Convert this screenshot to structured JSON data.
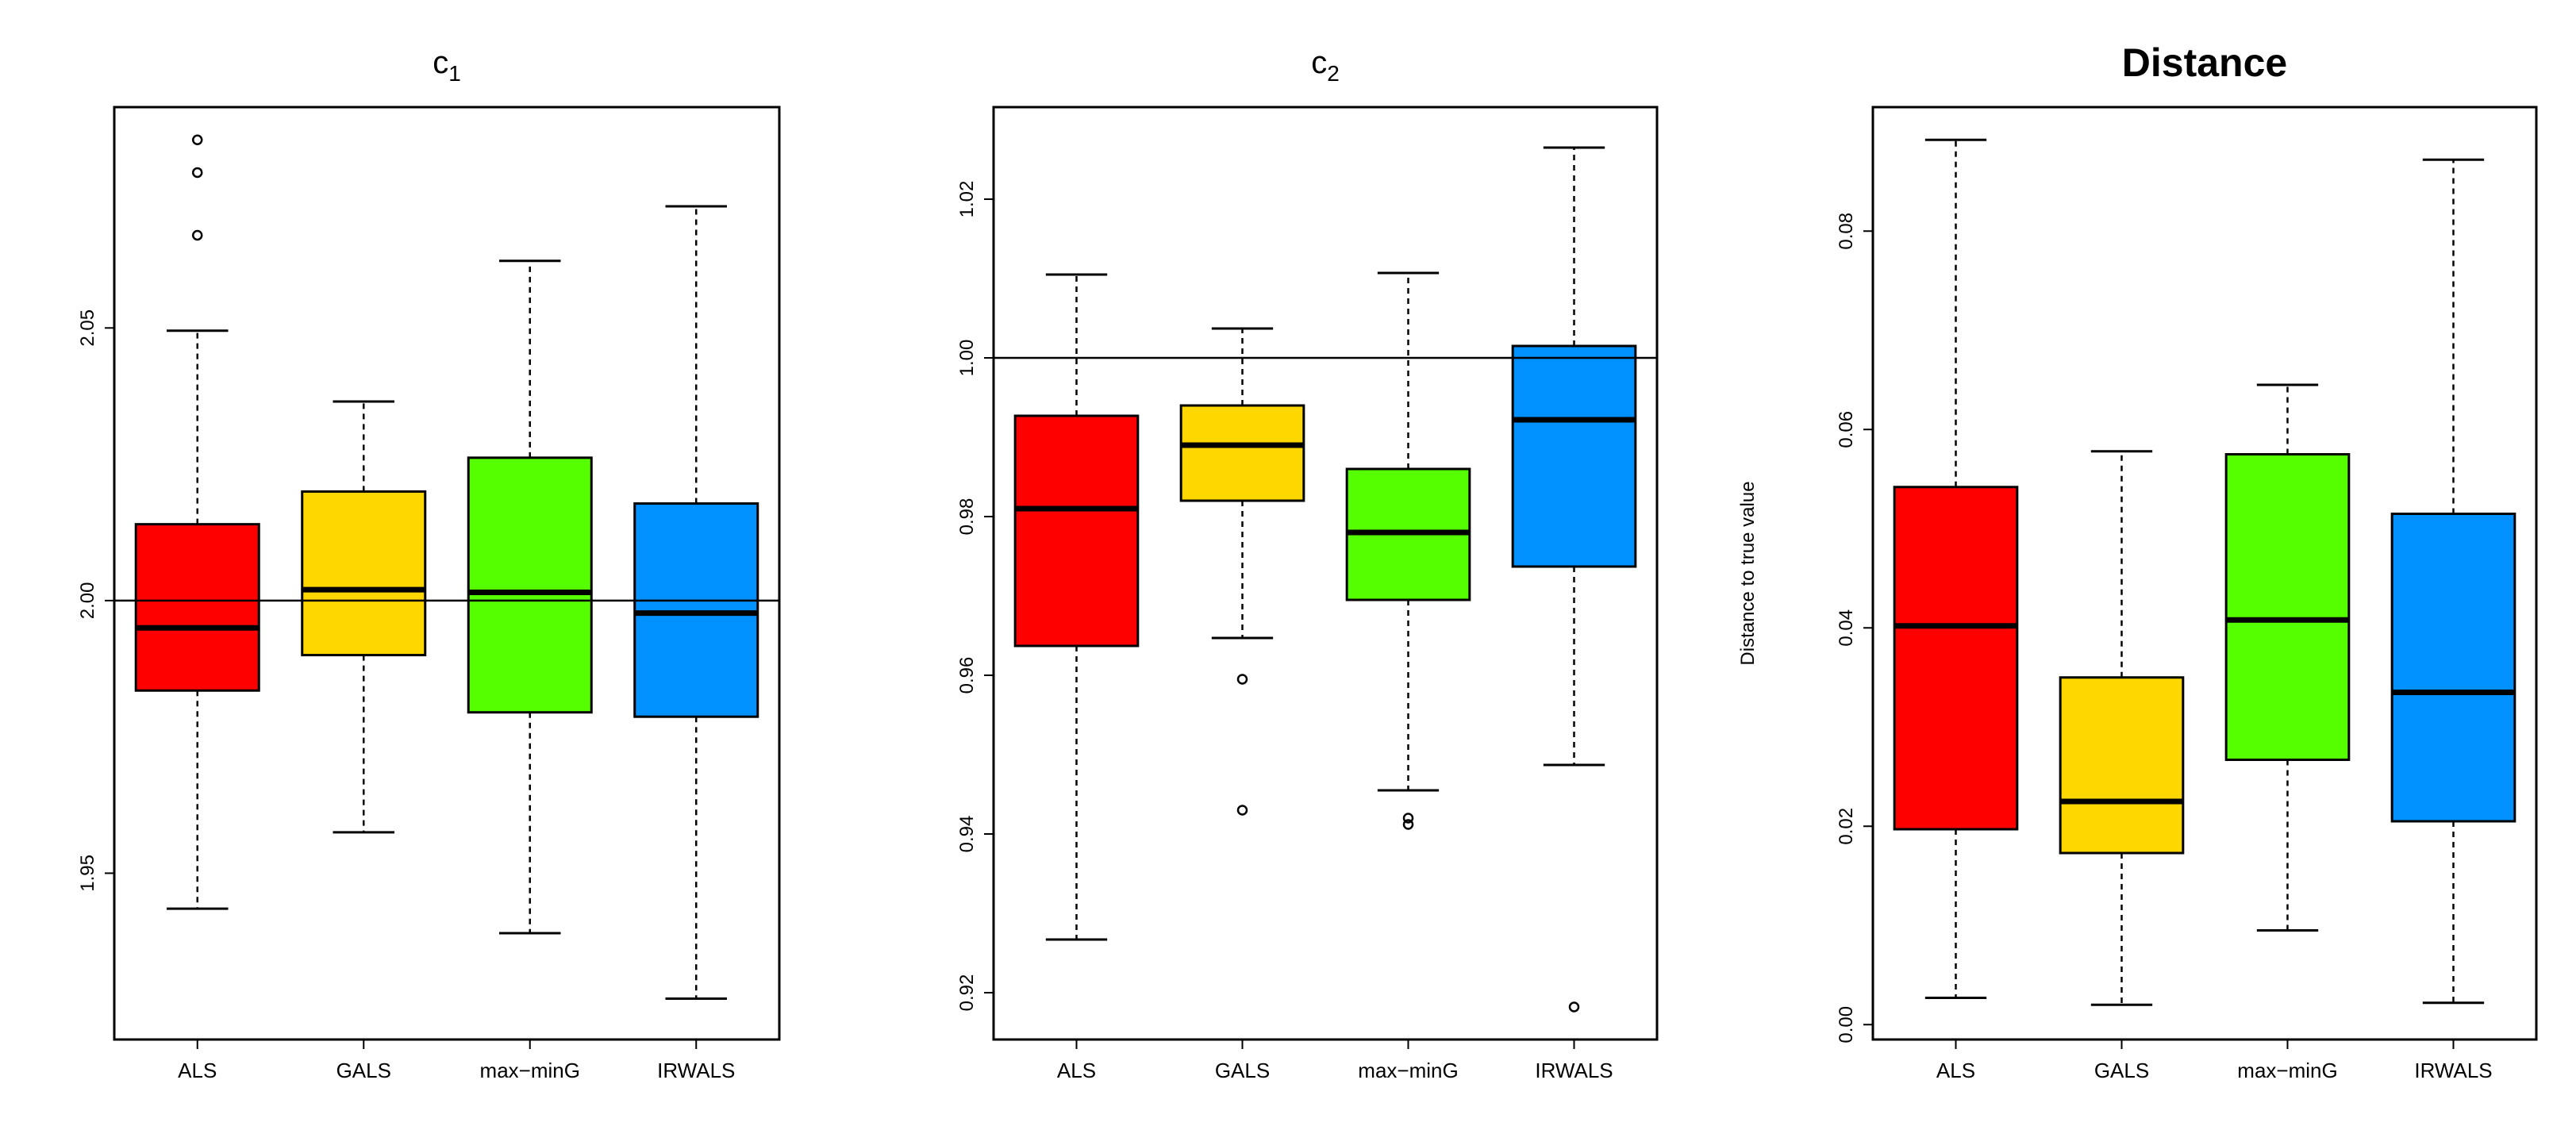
{
  "chart_data": [
    {
      "type": "boxplot",
      "title": "c",
      "title_subscript": "1",
      "title_bold": false,
      "xlabel": "",
      "ylabel": "",
      "ylim": [
        1.9195,
        2.0905
      ],
      "yticks": [
        1.95,
        2.0,
        2.05
      ],
      "ytick_labels": [
        "1.95",
        "2.00",
        "2.05"
      ],
      "reference_line": 2.0,
      "categories": [
        "ALS",
        "GALS",
        "max−minG",
        "IRWALS"
      ],
      "colors": [
        "#ff0000",
        "#ffd700",
        "#55ff00",
        "#0091ff"
      ],
      "boxes": [
        {
          "whisker_low": 1.9435,
          "q1": 1.9835,
          "median": 1.995,
          "q3": 2.014,
          "whisker_high": 2.0495,
          "outliers": [
            2.067,
            2.0785,
            2.0845
          ]
        },
        {
          "whisker_low": 1.9575,
          "q1": 1.99,
          "median": 2.002,
          "q3": 2.02,
          "whisker_high": 2.0365,
          "outliers": []
        },
        {
          "whisker_low": 1.939,
          "q1": 1.9795,
          "median": 2.0015,
          "q3": 2.0262,
          "whisker_high": 2.0623,
          "outliers": []
        },
        {
          "whisker_low": 1.927,
          "q1": 1.9787,
          "median": 1.9977,
          "q3": 2.0178,
          "whisker_high": 2.0723,
          "outliers": []
        }
      ]
    },
    {
      "type": "boxplot",
      "title": "c",
      "title_subscript": "2",
      "title_bold": false,
      "xlabel": "",
      "ylabel": "",
      "ylim": [
        0.9141,
        1.0316
      ],
      "yticks": [
        0.92,
        0.94,
        0.96,
        0.98,
        1.0,
        1.02
      ],
      "ytick_labels": [
        "0.92",
        "0.94",
        "0.96",
        "0.98",
        "1.00",
        "1.02"
      ],
      "reference_line": 1.0,
      "categories": [
        "ALS",
        "GALS",
        "max−minG",
        "IRWALS"
      ],
      "colors": [
        "#ff0000",
        "#ffd700",
        "#55ff00",
        "#0091ff"
      ],
      "boxes": [
        {
          "whisker_low": 0.9267,
          "q1": 0.9637,
          "median": 0.981,
          "q3": 0.9927,
          "whisker_high": 1.0105,
          "outliers": []
        },
        {
          "whisker_low": 0.9647,
          "q1": 0.982,
          "median": 0.989,
          "q3": 0.994,
          "whisker_high": 1.0037,
          "outliers": [
            0.9595,
            0.943
          ]
        },
        {
          "whisker_low": 0.9455,
          "q1": 0.9695,
          "median": 0.978,
          "q3": 0.986,
          "whisker_high": 1.0107,
          "outliers": [
            0.942,
            0.9412
          ]
        },
        {
          "whisker_low": 0.9487,
          "q1": 0.9737,
          "median": 0.9922,
          "q3": 1.0015,
          "whisker_high": 1.0265,
          "outliers": [
            0.9182
          ]
        }
      ]
    },
    {
      "type": "boxplot",
      "title": "Distance",
      "title_subscript": "",
      "title_bold": true,
      "xlabel": "",
      "ylabel": "Distance to true value",
      "ylim": [
        -0.0015,
        0.0925
      ],
      "yticks": [
        0.0,
        0.02,
        0.04,
        0.06,
        0.08
      ],
      "ytick_labels": [
        "0.00",
        "0.02",
        "0.04",
        "0.06",
        "0.08"
      ],
      "reference_line": null,
      "categories": [
        "ALS",
        "GALS",
        "max−minG",
        "IRWALS"
      ],
      "colors": [
        "#ff0000",
        "#ffd700",
        "#55ff00",
        "#0091ff"
      ],
      "boxes": [
        {
          "whisker_low": 0.0027,
          "q1": 0.0197,
          "median": 0.0402,
          "q3": 0.0542,
          "whisker_high": 0.0892,
          "outliers": []
        },
        {
          "whisker_low": 0.002,
          "q1": 0.0173,
          "median": 0.0225,
          "q3": 0.035,
          "whisker_high": 0.0578,
          "outliers": []
        },
        {
          "whisker_low": 0.0095,
          "q1": 0.0267,
          "median": 0.0408,
          "q3": 0.0575,
          "whisker_high": 0.0645,
          "outliers": []
        },
        {
          "whisker_low": 0.0022,
          "q1": 0.0205,
          "median": 0.0335,
          "q3": 0.0515,
          "whisker_high": 0.0872,
          "outliers": []
        }
      ]
    }
  ]
}
